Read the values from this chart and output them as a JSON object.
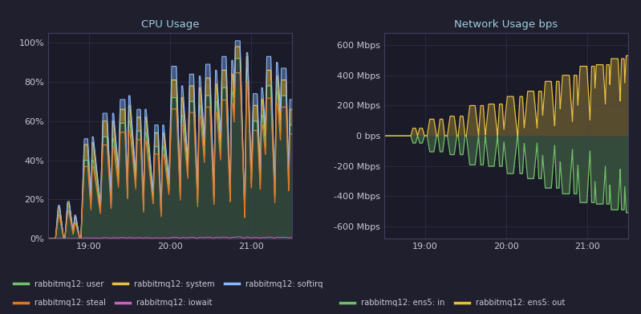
{
  "bg_color": "#1f1f2e",
  "plot_bg": "#1a1a28",
  "grid_color": "#404060",
  "text_color": "#c8c8d8",
  "title_color": "#9ecfdf",
  "cpu_title": "CPU Usage",
  "cpu_ylabel_ticks": [
    "0%",
    "20%",
    "40%",
    "60%",
    "80%",
    "100%"
  ],
  "cpu_ylim": [
    0,
    1.05
  ],
  "cpu_yticks": [
    0,
    0.2,
    0.4,
    0.6,
    0.8,
    1.0
  ],
  "cpu_xtick_labels": [
    "19:00",
    "20:00",
    "21:00"
  ],
  "net_title": "Network Usage bps",
  "net_ylabel_ticks": [
    "-600 Mbps",
    "-400 Mbps",
    "-200 Mbps",
    "0 bps",
    "200 Mbps",
    "400 Mbps",
    "600 Mbps"
  ],
  "net_ylim": [
    -680,
    680
  ],
  "net_yticks": [
    -600,
    -400,
    -200,
    0,
    200,
    400,
    600
  ],
  "net_xtick_labels": [
    "19:00",
    "20:00",
    "21:00"
  ],
  "cpu_legend": [
    {
      "label": "rabbitmq12: user",
      "color": "#73bf69"
    },
    {
      "label": "rabbitmq12: system",
      "color": "#e8c040"
    },
    {
      "label": "rabbitmq12: softirq",
      "color": "#8ab8ff"
    },
    {
      "label": "rabbitmq12: steal",
      "color": "#e07828"
    },
    {
      "label": "rabbitmq12: iowait",
      "color": "#d060c0"
    }
  ],
  "net_legend": [
    {
      "label": "rabbitmq12: ens5: in",
      "color": "#73bf69"
    },
    {
      "label": "rabbitmq12: ens5: out",
      "color": "#e8c040"
    }
  ]
}
